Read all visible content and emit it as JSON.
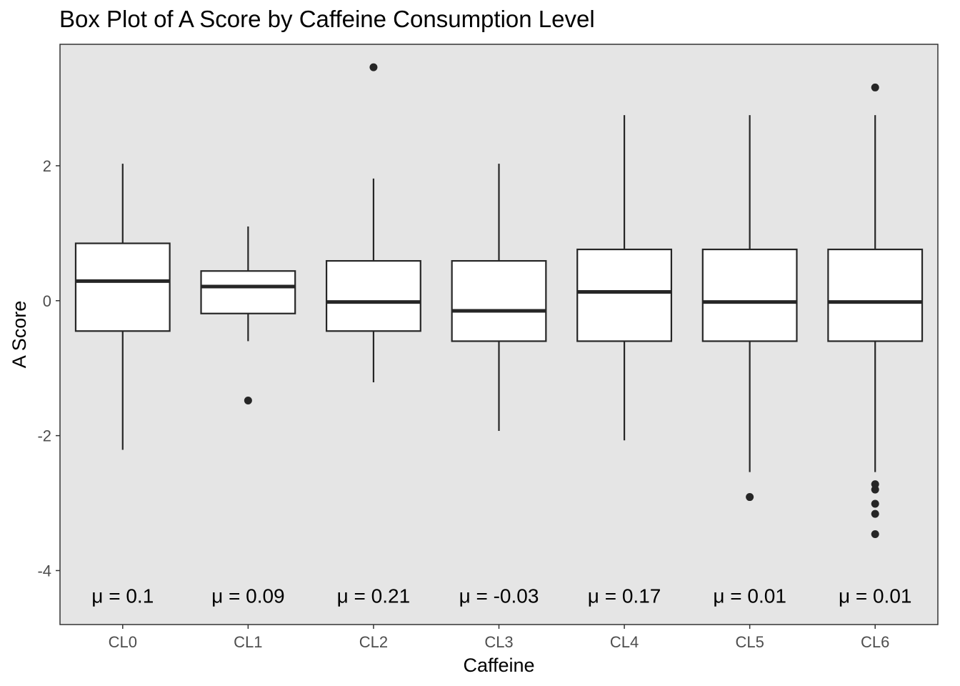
{
  "chart_data": {
    "type": "box",
    "title": "Box Plot of A Score by Caffeine Consumption Level",
    "xlabel": "Caffeine",
    "ylabel": "A Score",
    "ylim": [
      -4.8,
      3.8
    ],
    "yticks": [
      -4,
      -2,
      0,
      2
    ],
    "ytick_labels": [
      "-4",
      "-2",
      "0",
      "2"
    ],
    "grid": false,
    "panel_background": "#e5e5e5",
    "categories": [
      "CL0",
      "CL1",
      "CL2",
      "CL3",
      "CL4",
      "CL5",
      "CL6"
    ],
    "boxes": [
      {
        "category": "CL0",
        "whisker_low": -2.21,
        "q1": -0.45,
        "median": 0.29,
        "q3": 0.85,
        "whisker_high": 2.03,
        "outliers": []
      },
      {
        "category": "CL1",
        "whisker_low": -0.6,
        "q1": -0.19,
        "median": 0.21,
        "q3": 0.44,
        "whisker_high": 1.1,
        "outliers": [
          -1.48
        ]
      },
      {
        "category": "CL2",
        "whisker_low": -1.21,
        "q1": -0.45,
        "median": -0.02,
        "q3": 0.59,
        "whisker_high": 1.81,
        "outliers": [
          3.46
        ]
      },
      {
        "category": "CL3",
        "whisker_low": -1.93,
        "q1": -0.6,
        "median": -0.15,
        "q3": 0.59,
        "whisker_high": 2.03,
        "outliers": []
      },
      {
        "category": "CL4",
        "whisker_low": -2.07,
        "q1": -0.6,
        "median": 0.13,
        "q3": 0.76,
        "whisker_high": 2.75,
        "outliers": []
      },
      {
        "category": "CL5",
        "whisker_low": -2.54,
        "q1": -0.6,
        "median": -0.02,
        "q3": 0.76,
        "whisker_high": 2.75,
        "outliers": [
          -2.91
        ]
      },
      {
        "category": "CL6",
        "whisker_low": -2.54,
        "q1": -0.6,
        "median": -0.02,
        "q3": 0.76,
        "whisker_high": 2.75,
        "outliers": [
          3.16,
          -2.72,
          -2.8,
          -3.01,
          -3.16,
          -3.46
        ]
      }
    ],
    "annotations": [
      "μ = 0.1",
      "μ = 0.09",
      "μ = 0.21",
      "μ = -0.03",
      "μ = 0.17",
      "μ = 0.01",
      "μ = 0.01"
    ],
    "annotation_y": -4.37,
    "colors": {
      "box_fill": "#ffffff",
      "line": "#262626",
      "point": "#262626",
      "axis_text": "#4d4d4d"
    }
  }
}
